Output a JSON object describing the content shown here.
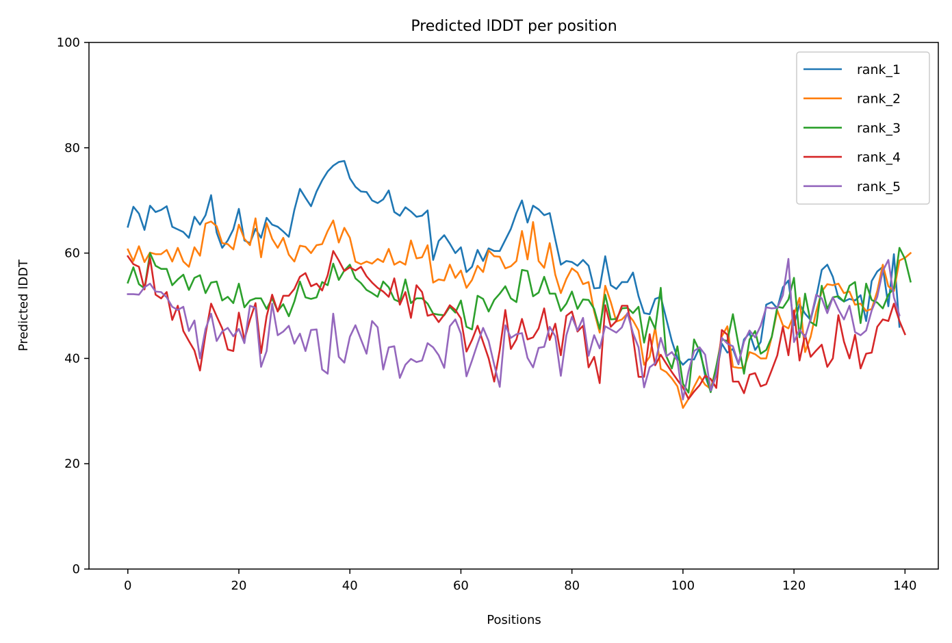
{
  "chart_data": {
    "type": "line",
    "title": "Predicted lDDT per position",
    "xlabel": "Positions",
    "ylabel": "Predicted lDDT",
    "xlim": [
      -7,
      146
    ],
    "ylim": [
      0,
      100
    ],
    "xticks": [
      "0",
      "20",
      "40",
      "60",
      "80",
      "100",
      "120",
      "140"
    ],
    "yticks": [
      "0",
      "20",
      "40",
      "60",
      "80",
      "100"
    ],
    "grid": false,
    "legend_position": "top-right",
    "series": [
      {
        "name": "rank_1",
        "color": "#1f77b4",
        "values": [
          65,
          68.8,
          67.5,
          64.4,
          69,
          67.8,
          68.2,
          68.9,
          65,
          64.5,
          64,
          62.9,
          66.9,
          65.4,
          67.2,
          71,
          63.9,
          61,
          62.4,
          64.5,
          68.4,
          62.4,
          61.9,
          64.6,
          62.9,
          66.7,
          65.4,
          65,
          64.1,
          63.1,
          68.2,
          72.2,
          70.5,
          68.9,
          71.7,
          73.8,
          75.5,
          76.6,
          77.3,
          77.5,
          74.2,
          72.6,
          71.7,
          71.6,
          70,
          69.5,
          70.2,
          71.9,
          67.8,
          67.1,
          68.7,
          67.9,
          66.9,
          67.1,
          68.1,
          58.7,
          62.3,
          63.4,
          61.8,
          60,
          61.1,
          56.4,
          57.4,
          60.6,
          58.5,
          60.9,
          60.4,
          60.4,
          62.5,
          64.6,
          67.6,
          70,
          65.8,
          69,
          68.3,
          67.2,
          67.6,
          62.6,
          57.8,
          58.5,
          58.3,
          57.6,
          58.7,
          57.6,
          53.3,
          53.4,
          59.4,
          53.9,
          53.2,
          54.5,
          54.5,
          56.3,
          51.8,
          48.6,
          48.4,
          51.3,
          51.7,
          47.5,
          43.3,
          40.1,
          38.8,
          39.8,
          39.8,
          42.1,
          36.7,
          33.7,
          36.9,
          42.8,
          41.1,
          41.8,
          38.9,
          43.6,
          44.8,
          41.6,
          43.1,
          50.2,
          50.7,
          49.5,
          53.5,
          54.8,
          46.3,
          50.3,
          48.5,
          47.3,
          51.6,
          56.8,
          57.8,
          55.5,
          51.5,
          50.8,
          51.3,
          51,
          52,
          47.1,
          54.7,
          56.5,
          57.4,
          49.9,
          59.8,
          46
        ]
      },
      {
        "name": "rank_2",
        "color": "#ff7f0e",
        "values": [
          60.7,
          58.5,
          61.3,
          58.3,
          60.1,
          59.8,
          59.8,
          60.6,
          58.4,
          61,
          58.4,
          57.4,
          61.1,
          59.5,
          65.6,
          66,
          65.1,
          61.9,
          61.7,
          60.7,
          65.4,
          62.7,
          61.5,
          66.6,
          59.2,
          65.7,
          62.7,
          61,
          62.9,
          59.7,
          58.4,
          61.4,
          61.2,
          60,
          61.5,
          61.7,
          64.2,
          66.2,
          62,
          64.8,
          62.9,
          58.4,
          57.9,
          58.4,
          58,
          58.9,
          58.3,
          60.8,
          57.8,
          58.4,
          57.8,
          62.4,
          59,
          59.2,
          61.5,
          54.4,
          55,
          54.8,
          57.8,
          55.3,
          56.7,
          53.4,
          54.9,
          57.6,
          56.4,
          60.5,
          59.4,
          59.3,
          57.1,
          57.5,
          58.5,
          64.2,
          58.8,
          65.9,
          58.5,
          57.2,
          61.9,
          55.9,
          52.4,
          55.1,
          57.1,
          56.3,
          54.1,
          54.5,
          48.9,
          44.9,
          53.8,
          50.7,
          47,
          47.4,
          48.5,
          47.2,
          45.3,
          38.8,
          40.3,
          45.9,
          38,
          37.4,
          36.2,
          34.7,
          30.6,
          32.3,
          34.6,
          36.6,
          35,
          34.2,
          38.3,
          44.2,
          46.1,
          38.4,
          38.2,
          38.2,
          41.2,
          40.8,
          40,
          40,
          44.1,
          49.1,
          46.3,
          45.7,
          48.3,
          51.5,
          41.2,
          44.1,
          48.9,
          52.7,
          54.1,
          53.9,
          54.2,
          52.4,
          52.7,
          50.2,
          50.4,
          49,
          49.4,
          52.8,
          57.8,
          53.7,
          52.8,
          58.6,
          59.1,
          60
        ]
      },
      {
        "name": "rank_3",
        "color": "#2ca02c",
        "values": [
          54.4,
          57.3,
          54.1,
          53.3,
          60,
          57.6,
          57,
          57,
          53.9,
          55,
          55.9,
          53,
          55.3,
          55.8,
          52.4,
          54.4,
          54.6,
          51,
          51.7,
          50.5,
          54.2,
          49.7,
          51,
          51.4,
          51.4,
          49.4,
          51.4,
          49,
          50.3,
          48,
          50.8,
          54.6,
          51.6,
          51.3,
          51.6,
          54.5,
          53.9,
          58,
          54.9,
          56.7,
          57.8,
          55.2,
          54.3,
          53,
          52.4,
          51.7,
          54.6,
          53.5,
          51.2,
          50.7,
          55,
          50.5,
          51.4,
          51.4,
          50.4,
          48.5,
          48.3,
          48.2,
          49.8,
          48.7,
          51,
          46,
          45.5,
          51.9,
          51.3,
          48.9,
          51.1,
          52.3,
          53.7,
          51.4,
          50.7,
          56.8,
          56.6,
          51.8,
          52.5,
          55.5,
          52.3,
          52.3,
          49,
          50.4,
          52.7,
          49.4,
          51.2,
          51.1,
          49.4,
          45.6,
          52.1,
          47.4,
          47.5,
          49.5,
          49.6,
          48.6,
          49.8,
          43,
          47.9,
          45.6,
          53.4,
          40.4,
          38.1,
          42.3,
          35.2,
          33.5,
          43.6,
          41.4,
          37.4,
          33.6,
          38.5,
          43.6,
          43.3,
          48.4,
          42.6,
          37.1,
          43.6,
          45.2,
          40.9,
          41.6,
          44.1,
          49.8,
          49.6,
          51.2,
          55.3,
          44,
          52.3,
          46.9,
          46.2,
          53.8,
          49.4,
          51.6,
          51.8,
          50.8,
          53.8,
          54.5,
          46.7,
          54.2,
          51.1,
          50.6,
          49.5,
          52.1,
          53.3,
          61,
          58.9,
          54.6
        ]
      },
      {
        "name": "rank_4",
        "color": "#d62728",
        "values": [
          59.4,
          57.9,
          57.4,
          53.1,
          59.1,
          52.1,
          51.4,
          52.6,
          47.3,
          50,
          45.2,
          43.3,
          41.5,
          37.7,
          44.6,
          50.4,
          48,
          45.7,
          41.7,
          41.4,
          48.7,
          43.6,
          47.3,
          50.5,
          41,
          48,
          52.1,
          48.9,
          51.9,
          51.9,
          53.2,
          55.5,
          56.2,
          53.7,
          54.2,
          52.9,
          55.8,
          60.4,
          58.6,
          56.6,
          57.3,
          56.7,
          57.4,
          55.6,
          54.4,
          53.4,
          52.7,
          51.7,
          55.2,
          50.2,
          52.6,
          47.7,
          53.9,
          52.6,
          48.1,
          48.4,
          46.9,
          48.3,
          50.1,
          49.2,
          47.6,
          41.3,
          43.5,
          46.2,
          43.1,
          40,
          35.6,
          41.6,
          49.2,
          41.8,
          43.6,
          47.5,
          43.6,
          44,
          45.7,
          49.5,
          43.5,
          46.6,
          40.6,
          48.1,
          48.9,
          45.1,
          46.2,
          38.3,
          40.3,
          35.3,
          50.1,
          46,
          47.1,
          50,
          50,
          44,
          36.5,
          36.5,
          44.6,
          38.7,
          40.7,
          39,
          37.4,
          35.9,
          34.5,
          32.3,
          33.7,
          34.9,
          36.7,
          36.1,
          34.4,
          45.4,
          44.5,
          35.6,
          35.6,
          33.4,
          36.9,
          37.2,
          34.7,
          35.1,
          37.8,
          40.6,
          46,
          40.6,
          49.1,
          39.6,
          44.5,
          40.3,
          41.5,
          42.6,
          38.4,
          40,
          48.2,
          43.2,
          40,
          44.5,
          38.1,
          40.9,
          41.1,
          46,
          47.4,
          47.1,
          50.4,
          47.1,
          44.6
        ]
      },
      {
        "name": "rank_5",
        "color": "#9467bd",
        "values": [
          52.2,
          52.2,
          52.1,
          53.5,
          54.2,
          52.7,
          52.6,
          51.6,
          49.8,
          49.2,
          49.8,
          45.2,
          47.2,
          40,
          45.6,
          48.5,
          43.3,
          45.1,
          45.8,
          44.2,
          45.6,
          42.9,
          50,
          49.6,
          38.4,
          41.4,
          50.4,
          44.4,
          45.1,
          46.2,
          42.8,
          44.7,
          41.4,
          45.4,
          45.5,
          37.9,
          37.1,
          48.5,
          40.3,
          39.2,
          44.1,
          46.3,
          43.6,
          40.9,
          47.1,
          45.9,
          37.9,
          42.1,
          42.3,
          36.3,
          38.8,
          39.9,
          39.3,
          39.6,
          42.9,
          42.1,
          40.6,
          38.2,
          46.1,
          47.4,
          44.7,
          36.6,
          39.6,
          42.8,
          45.8,
          43.3,
          38.8,
          34.6,
          46.3,
          43.9,
          44.6,
          44.8,
          40.1,
          38.3,
          42,
          42.2,
          46,
          44.2,
          36.7,
          44.4,
          47.9,
          45.3,
          47.7,
          40.5,
          44.4,
          41.9,
          46.1,
          45.5,
          44.9,
          45.9,
          48.6,
          44.8,
          42.1,
          34.5,
          38.3,
          39.1,
          43.9,
          40.4,
          41.2,
          39.6,
          32.2,
          37.5,
          41.4,
          42.1,
          40.7,
          33.9,
          37,
          43.9,
          42.8,
          42.3,
          39,
          43.2,
          45.3,
          44,
          46.2,
          49.7,
          49.5,
          49.6,
          52,
          58.9,
          43.1,
          45.5,
          44,
          47.5,
          52.1,
          51.4,
          48.6,
          51.6,
          49.3,
          47.4,
          50,
          45,
          44.4,
          45.3,
          49.1,
          51.7,
          56.6,
          58.7,
          51.6,
          48.2
        ]
      }
    ]
  }
}
